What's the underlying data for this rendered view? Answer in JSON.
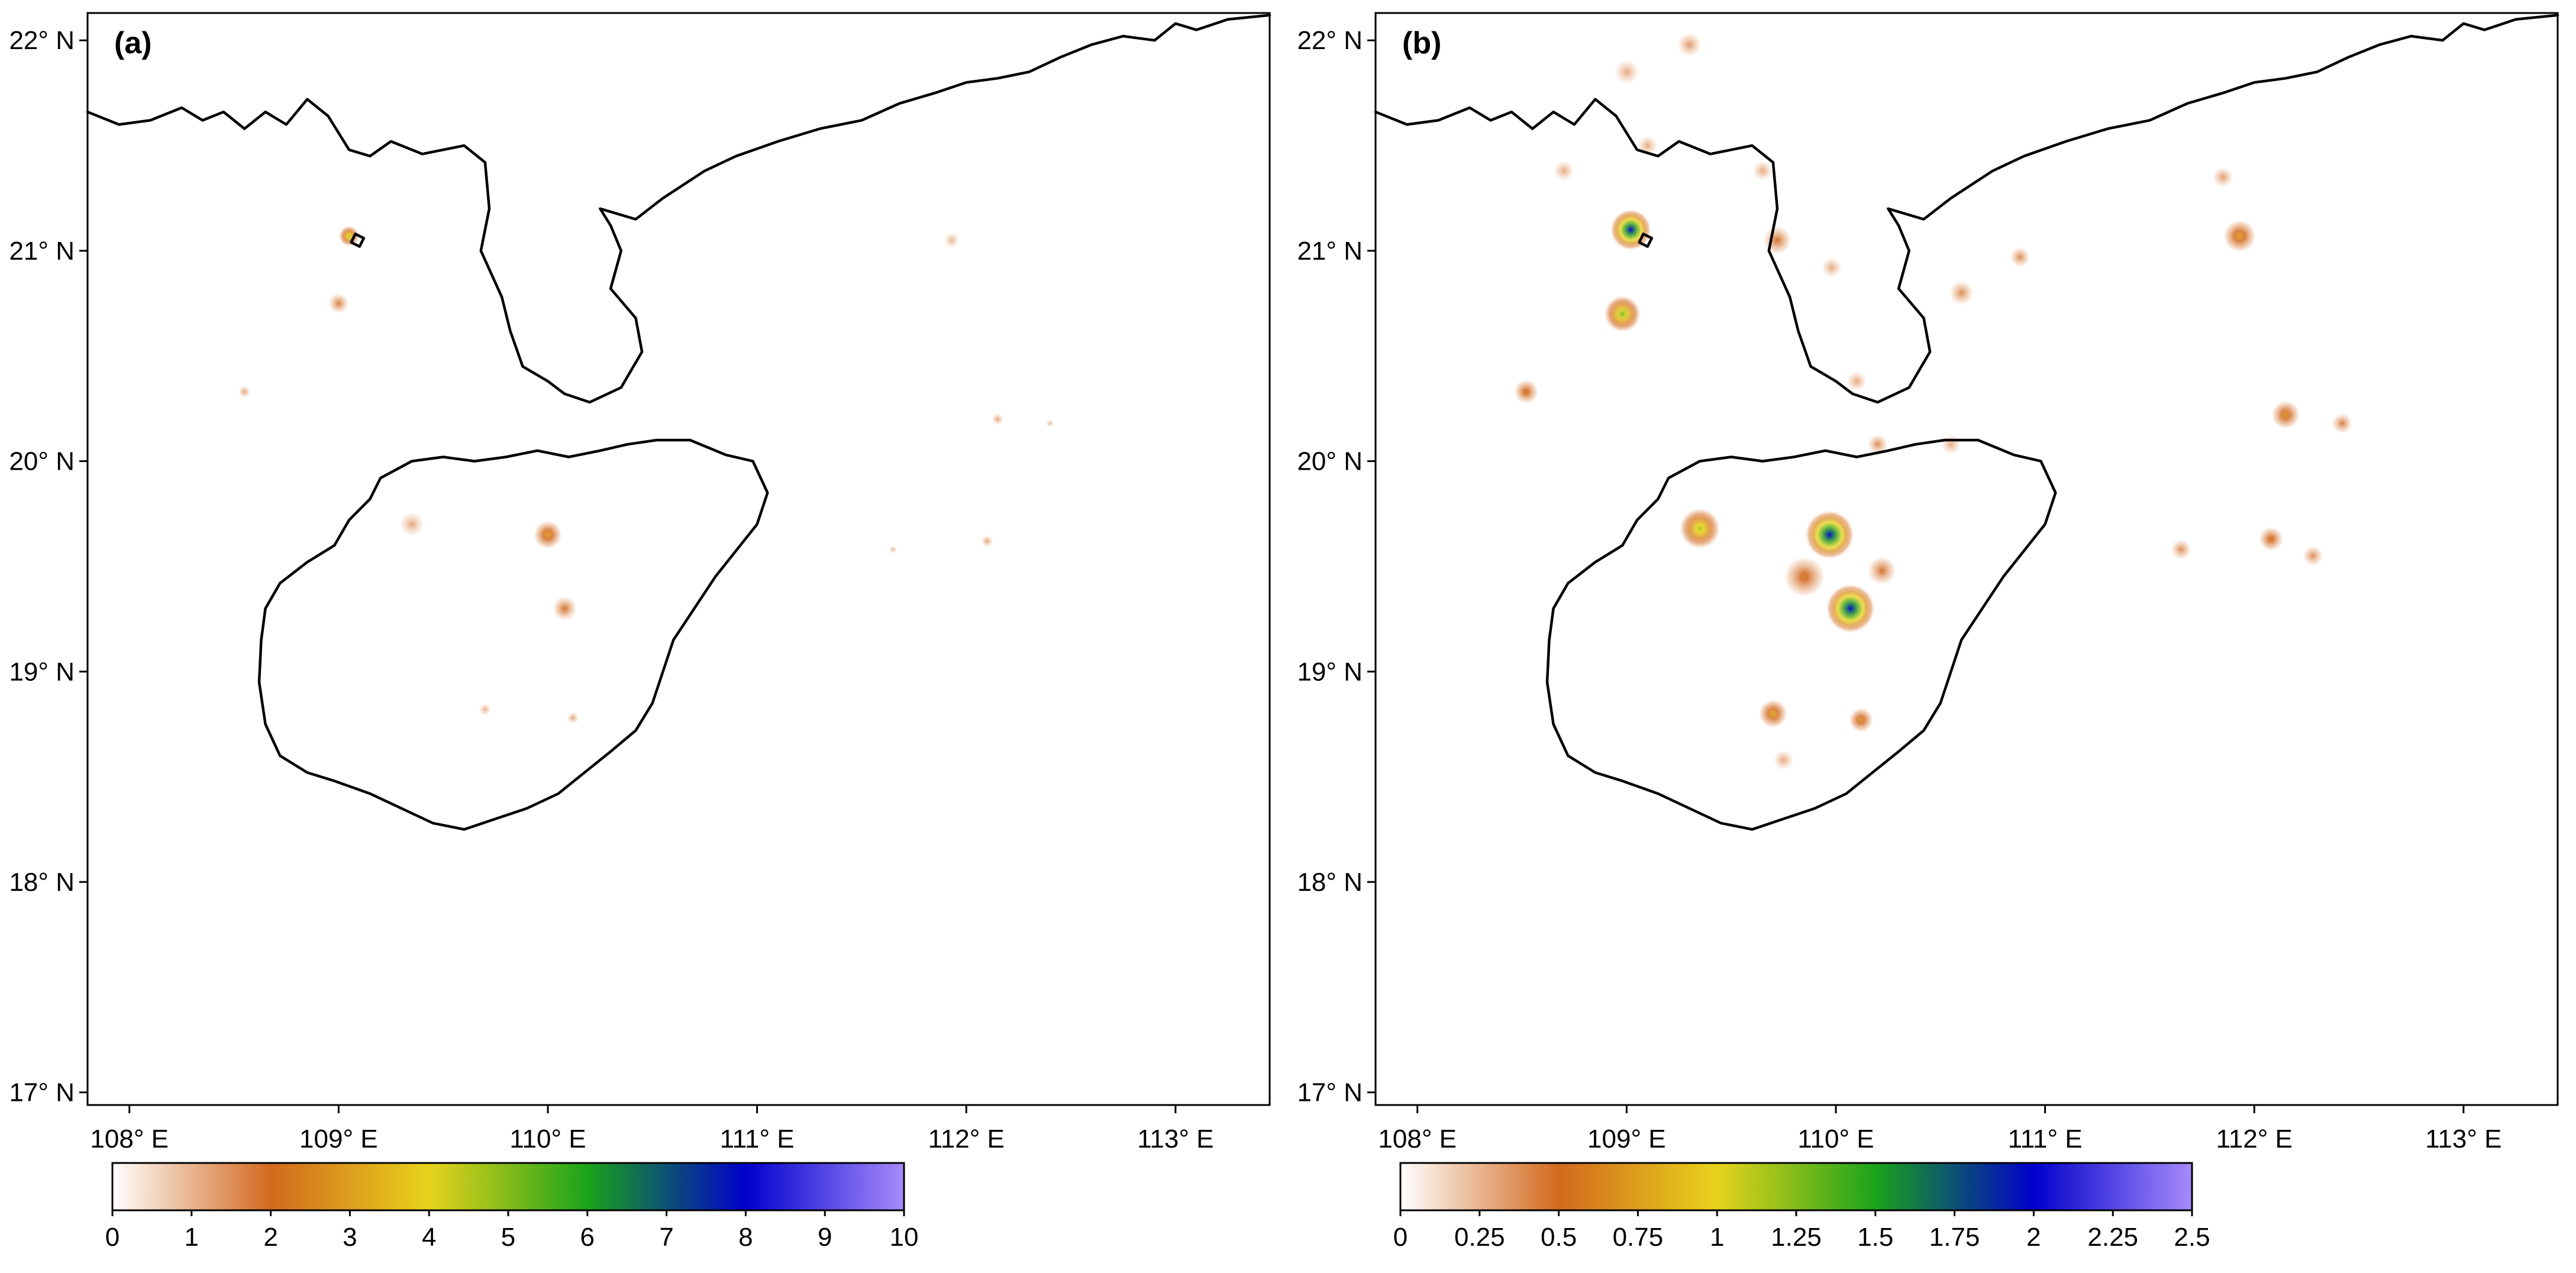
{
  "panels": [
    {
      "id": "a",
      "label": "(a)",
      "lat_ticks": [
        "22° N",
        "21° N",
        "20° N",
        "19° N",
        "18° N",
        "17° N"
      ],
      "lon_ticks": [
        "108° E",
        "109° E",
        "110° E",
        "111° E",
        "112° E",
        "113° E"
      ],
      "colorbar": {
        "ticks": [
          "0",
          "1",
          "2",
          "3",
          "4",
          "5",
          "6",
          "7",
          "8",
          "9",
          "10"
        ],
        "range": [
          0,
          10
        ]
      },
      "hotspots": [
        {
          "lon": 109.05,
          "lat": 21.07,
          "value": 4.5,
          "spread": 0.05
        },
        {
          "lon": 109.0,
          "lat": 20.75,
          "value": 1.8,
          "spread": 0.05
        },
        {
          "lon": 110.0,
          "lat": 19.65,
          "value": 3.0,
          "spread": 0.07
        },
        {
          "lon": 110.08,
          "lat": 19.3,
          "value": 2.0,
          "spread": 0.06
        },
        {
          "lon": 109.35,
          "lat": 19.7,
          "value": 1.2,
          "spread": 0.06
        },
        {
          "lon": 108.55,
          "lat": 20.33,
          "value": 1.3,
          "spread": 0.03
        },
        {
          "lon": 111.93,
          "lat": 21.05,
          "value": 1.0,
          "spread": 0.04
        },
        {
          "lon": 112.1,
          "lat": 19.62,
          "value": 1.2,
          "spread": 0.03
        },
        {
          "lon": 112.15,
          "lat": 20.2,
          "value": 1.2,
          "spread": 0.03
        },
        {
          "lon": 109.7,
          "lat": 18.82,
          "value": 1.1,
          "spread": 0.03
        },
        {
          "lon": 110.12,
          "lat": 18.78,
          "value": 1.2,
          "spread": 0.03
        },
        {
          "lon": 111.65,
          "lat": 19.58,
          "value": 1.0,
          "spread": 0.02
        },
        {
          "lon": 112.4,
          "lat": 20.18,
          "value": 1.0,
          "spread": 0.02
        }
      ]
    },
    {
      "id": "b",
      "label": "(b)",
      "lat_ticks": [
        "22° N",
        "21° N",
        "20° N",
        "19° N",
        "18° N",
        "17° N"
      ],
      "lon_ticks": [
        "108° E",
        "109° E",
        "110° E",
        "111° E",
        "112° E",
        "113° E"
      ],
      "colorbar": {
        "ticks": [
          "0",
          "0.25",
          "0.5",
          "0.75",
          "1",
          "1.25",
          "1.5",
          "1.75",
          "2",
          "2.25",
          "2.5"
        ],
        "range": [
          0,
          2.5
        ]
      },
      "hotspots": [
        {
          "lon": 109.02,
          "lat": 21.1,
          "value": 2.0,
          "spread": 0.1
        },
        {
          "lon": 108.98,
          "lat": 20.7,
          "value": 1.3,
          "spread": 0.09
        },
        {
          "lon": 109.0,
          "lat": 21.85,
          "value": 0.3,
          "spread": 0.06
        },
        {
          "lon": 109.3,
          "lat": 21.98,
          "value": 0.35,
          "spread": 0.06
        },
        {
          "lon": 109.35,
          "lat": 19.68,
          "value": 1.2,
          "spread": 0.1
        },
        {
          "lon": 109.97,
          "lat": 19.65,
          "value": 2.0,
          "spread": 0.12
        },
        {
          "lon": 110.07,
          "lat": 19.3,
          "value": 2.0,
          "spread": 0.12
        },
        {
          "lon": 109.85,
          "lat": 19.45,
          "value": 0.6,
          "spread": 0.1
        },
        {
          "lon": 110.22,
          "lat": 19.48,
          "value": 0.5,
          "spread": 0.07
        },
        {
          "lon": 109.72,
          "lat": 21.05,
          "value": 0.5,
          "spread": 0.07
        },
        {
          "lon": 109.98,
          "lat": 20.92,
          "value": 0.3,
          "spread": 0.05
        },
        {
          "lon": 108.52,
          "lat": 20.33,
          "value": 0.6,
          "spread": 0.06
        },
        {
          "lon": 110.1,
          "lat": 20.38,
          "value": 0.3,
          "spread": 0.05
        },
        {
          "lon": 110.6,
          "lat": 20.8,
          "value": 0.4,
          "spread": 0.06
        },
        {
          "lon": 110.88,
          "lat": 20.97,
          "value": 0.4,
          "spread": 0.05
        },
        {
          "lon": 111.93,
          "lat": 21.07,
          "value": 0.75,
          "spread": 0.08
        },
        {
          "lon": 111.85,
          "lat": 21.35,
          "value": 0.35,
          "spread": 0.05
        },
        {
          "lon": 112.15,
          "lat": 20.22,
          "value": 0.7,
          "spread": 0.07
        },
        {
          "lon": 112.42,
          "lat": 20.18,
          "value": 0.45,
          "spread": 0.05
        },
        {
          "lon": 112.08,
          "lat": 19.63,
          "value": 0.6,
          "spread": 0.06
        },
        {
          "lon": 112.28,
          "lat": 19.55,
          "value": 0.4,
          "spread": 0.05
        },
        {
          "lon": 111.65,
          "lat": 19.58,
          "value": 0.4,
          "spread": 0.05
        },
        {
          "lon": 109.7,
          "lat": 18.8,
          "value": 0.8,
          "spread": 0.07
        },
        {
          "lon": 110.12,
          "lat": 18.77,
          "value": 0.7,
          "spread": 0.06
        },
        {
          "lon": 109.75,
          "lat": 18.58,
          "value": 0.3,
          "spread": 0.05
        },
        {
          "lon": 110.2,
          "lat": 20.08,
          "value": 0.4,
          "spread": 0.05
        },
        {
          "lon": 110.55,
          "lat": 20.08,
          "value": 0.3,
          "spread": 0.05
        },
        {
          "lon": 109.65,
          "lat": 21.38,
          "value": 0.3,
          "spread": 0.05
        },
        {
          "lon": 108.7,
          "lat": 21.38,
          "value": 0.3,
          "spread": 0.05
        },
        {
          "lon": 109.1,
          "lat": 21.5,
          "value": 0.3,
          "spread": 0.05
        }
      ]
    }
  ],
  "colors": {
    "colorbar_stops": [
      "#ffffff",
      "#d2691e",
      "#e8d31c",
      "#1aa31a",
      "#0000cc",
      "#a78bfa"
    ]
  }
}
